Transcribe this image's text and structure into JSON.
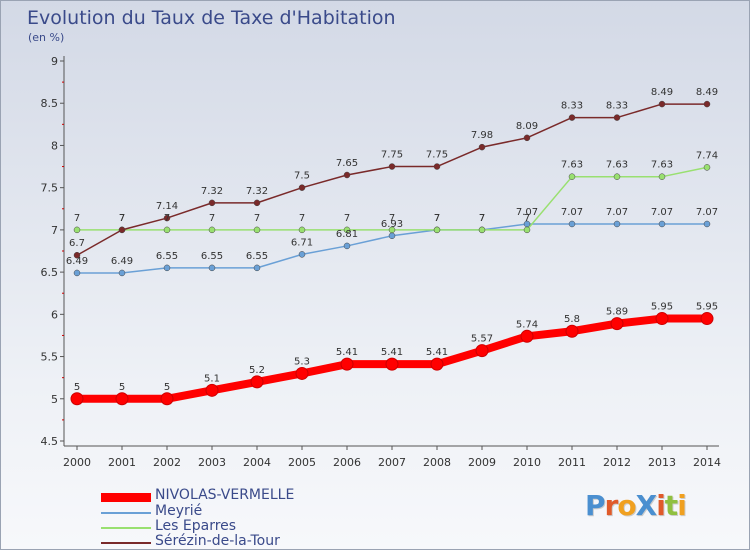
{
  "title": "Evolution du Taux de Taxe d'Habitation",
  "subtitle": "(en %)",
  "logo_text": "ProXiti",
  "chart_data": {
    "type": "line",
    "title": "Evolution du Taux de Taxe d'Habitation",
    "ylabel": "(en %)",
    "xlabel": "",
    "x": [
      "2000",
      "2001",
      "2002",
      "2003",
      "2004",
      "2005",
      "2006",
      "2007",
      "2008",
      "2009",
      "2010",
      "2011",
      "2012",
      "2013",
      "2014"
    ],
    "ylim": [
      4.5,
      9
    ],
    "yticks": [
      "4.5",
      "5",
      "5.5",
      "6",
      "6.5",
      "7",
      "7.5",
      "8",
      "8.5",
      "9"
    ],
    "grid": false,
    "legend_position": "bottom-left",
    "series": [
      {
        "name": "NIVOLAS-VERMELLE",
        "color": "#ff0000",
        "values": [
          5,
          5,
          5,
          5.1,
          5.2,
          5.3,
          5.41,
          5.41,
          5.41,
          5.57,
          5.74,
          5.8,
          5.89,
          5.95,
          5.95
        ],
        "labels": [
          "5",
          "5",
          "5",
          "5.1",
          "5.2",
          "5.3",
          "5.41",
          "5.41",
          "5.41",
          "5.57",
          "5.74",
          "5.8",
          "5.89",
          "5.95",
          "5.95"
        ]
      },
      {
        "name": "Meyrié",
        "color": "#6aa0d6",
        "values": [
          6.49,
          6.49,
          6.55,
          6.55,
          6.55,
          6.71,
          6.81,
          6.93,
          7,
          7,
          7.07,
          7.07,
          7.07,
          7.07,
          7.07
        ],
        "labels": [
          "6.49",
          "6.49",
          "6.55",
          "6.55",
          "6.55",
          "6.71",
          "6.81",
          "6.93",
          "7",
          "7",
          "7.07",
          "7.07",
          "7.07",
          "7.07",
          "7.07"
        ]
      },
      {
        "name": "Les Eparres",
        "color": "#99e070",
        "values": [
          7,
          7,
          7,
          7,
          7,
          7,
          7,
          7,
          7,
          7,
          7,
          7.63,
          7.63,
          7.63,
          7.74
        ],
        "labels": [
          "7",
          "7",
          "7",
          "7",
          "7",
          "7",
          "7",
          "7",
          "7",
          "7",
          "7",
          "7.63",
          "7.63",
          "7.63",
          "7.74"
        ]
      },
      {
        "name": "Sérézin-de-la-Tour",
        "color": "#7a2a2a",
        "values": [
          6.7,
          7,
          7.14,
          7.32,
          7.32,
          7.5,
          7.65,
          7.75,
          7.75,
          7.98,
          8.09,
          8.33,
          8.33,
          8.49,
          8.49
        ],
        "labels": [
          "6.7",
          "7",
          "7.14",
          "7.32",
          "7.32",
          "7.5",
          "7.65",
          "7.75",
          "7.75",
          "7.98",
          "8.09",
          "8.33",
          "8.33",
          "8.49",
          "8.49"
        ]
      }
    ]
  },
  "legend": [
    {
      "label": "NIVOLAS-VERMELLE",
      "color": "#ff0000"
    },
    {
      "label": "Meyrié",
      "color": "#6aa0d6"
    },
    {
      "label": "Les Eparres",
      "color": "#99e070"
    },
    {
      "label": "Sérézin-de-la-Tour",
      "color": "#7a2a2a"
    }
  ]
}
